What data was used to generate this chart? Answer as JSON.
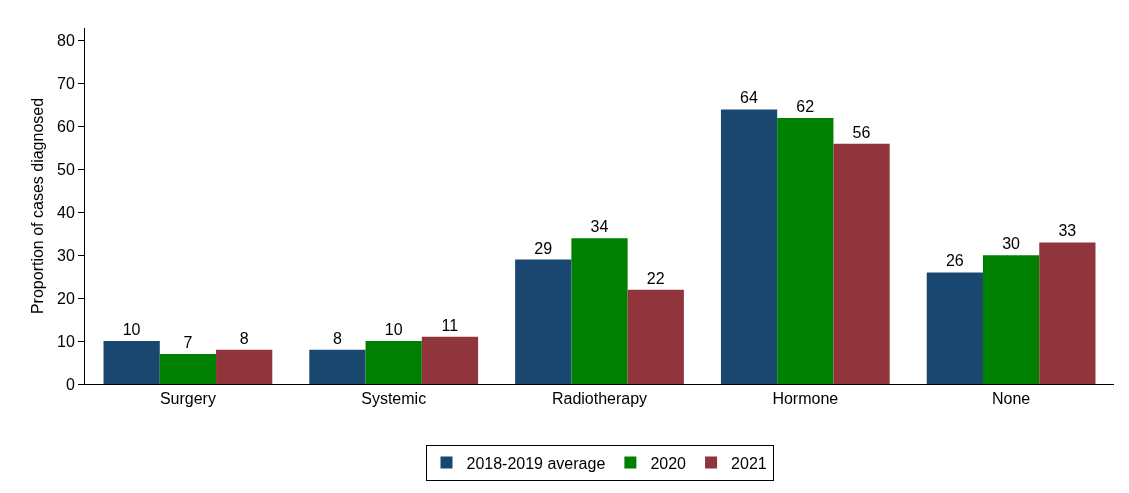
{
  "chart_data": {
    "type": "bar",
    "ylabel": "Proportion of cases diagnosed",
    "categories": [
      "Surgery",
      "Systemic",
      "Radiotherapy",
      "Hormone",
      "None"
    ],
    "series": [
      {
        "name": "2018-2019 average",
        "color": "#1a476f",
        "values": [
          10,
          8,
          29,
          64,
          26
        ]
      },
      {
        "name": "2020",
        "color": "#008000",
        "values": [
          7,
          10,
          34,
          62,
          30
        ]
      },
      {
        "name": "2021",
        "color": "#90353b",
        "values": [
          8,
          11,
          22,
          56,
          33
        ]
      }
    ],
    "ylim": [
      0,
      83
    ],
    "yticks": [
      0,
      10,
      20,
      30,
      40,
      50,
      60,
      70,
      80
    ],
    "grid": false,
    "legend": "bottom",
    "data_labels": true
  }
}
